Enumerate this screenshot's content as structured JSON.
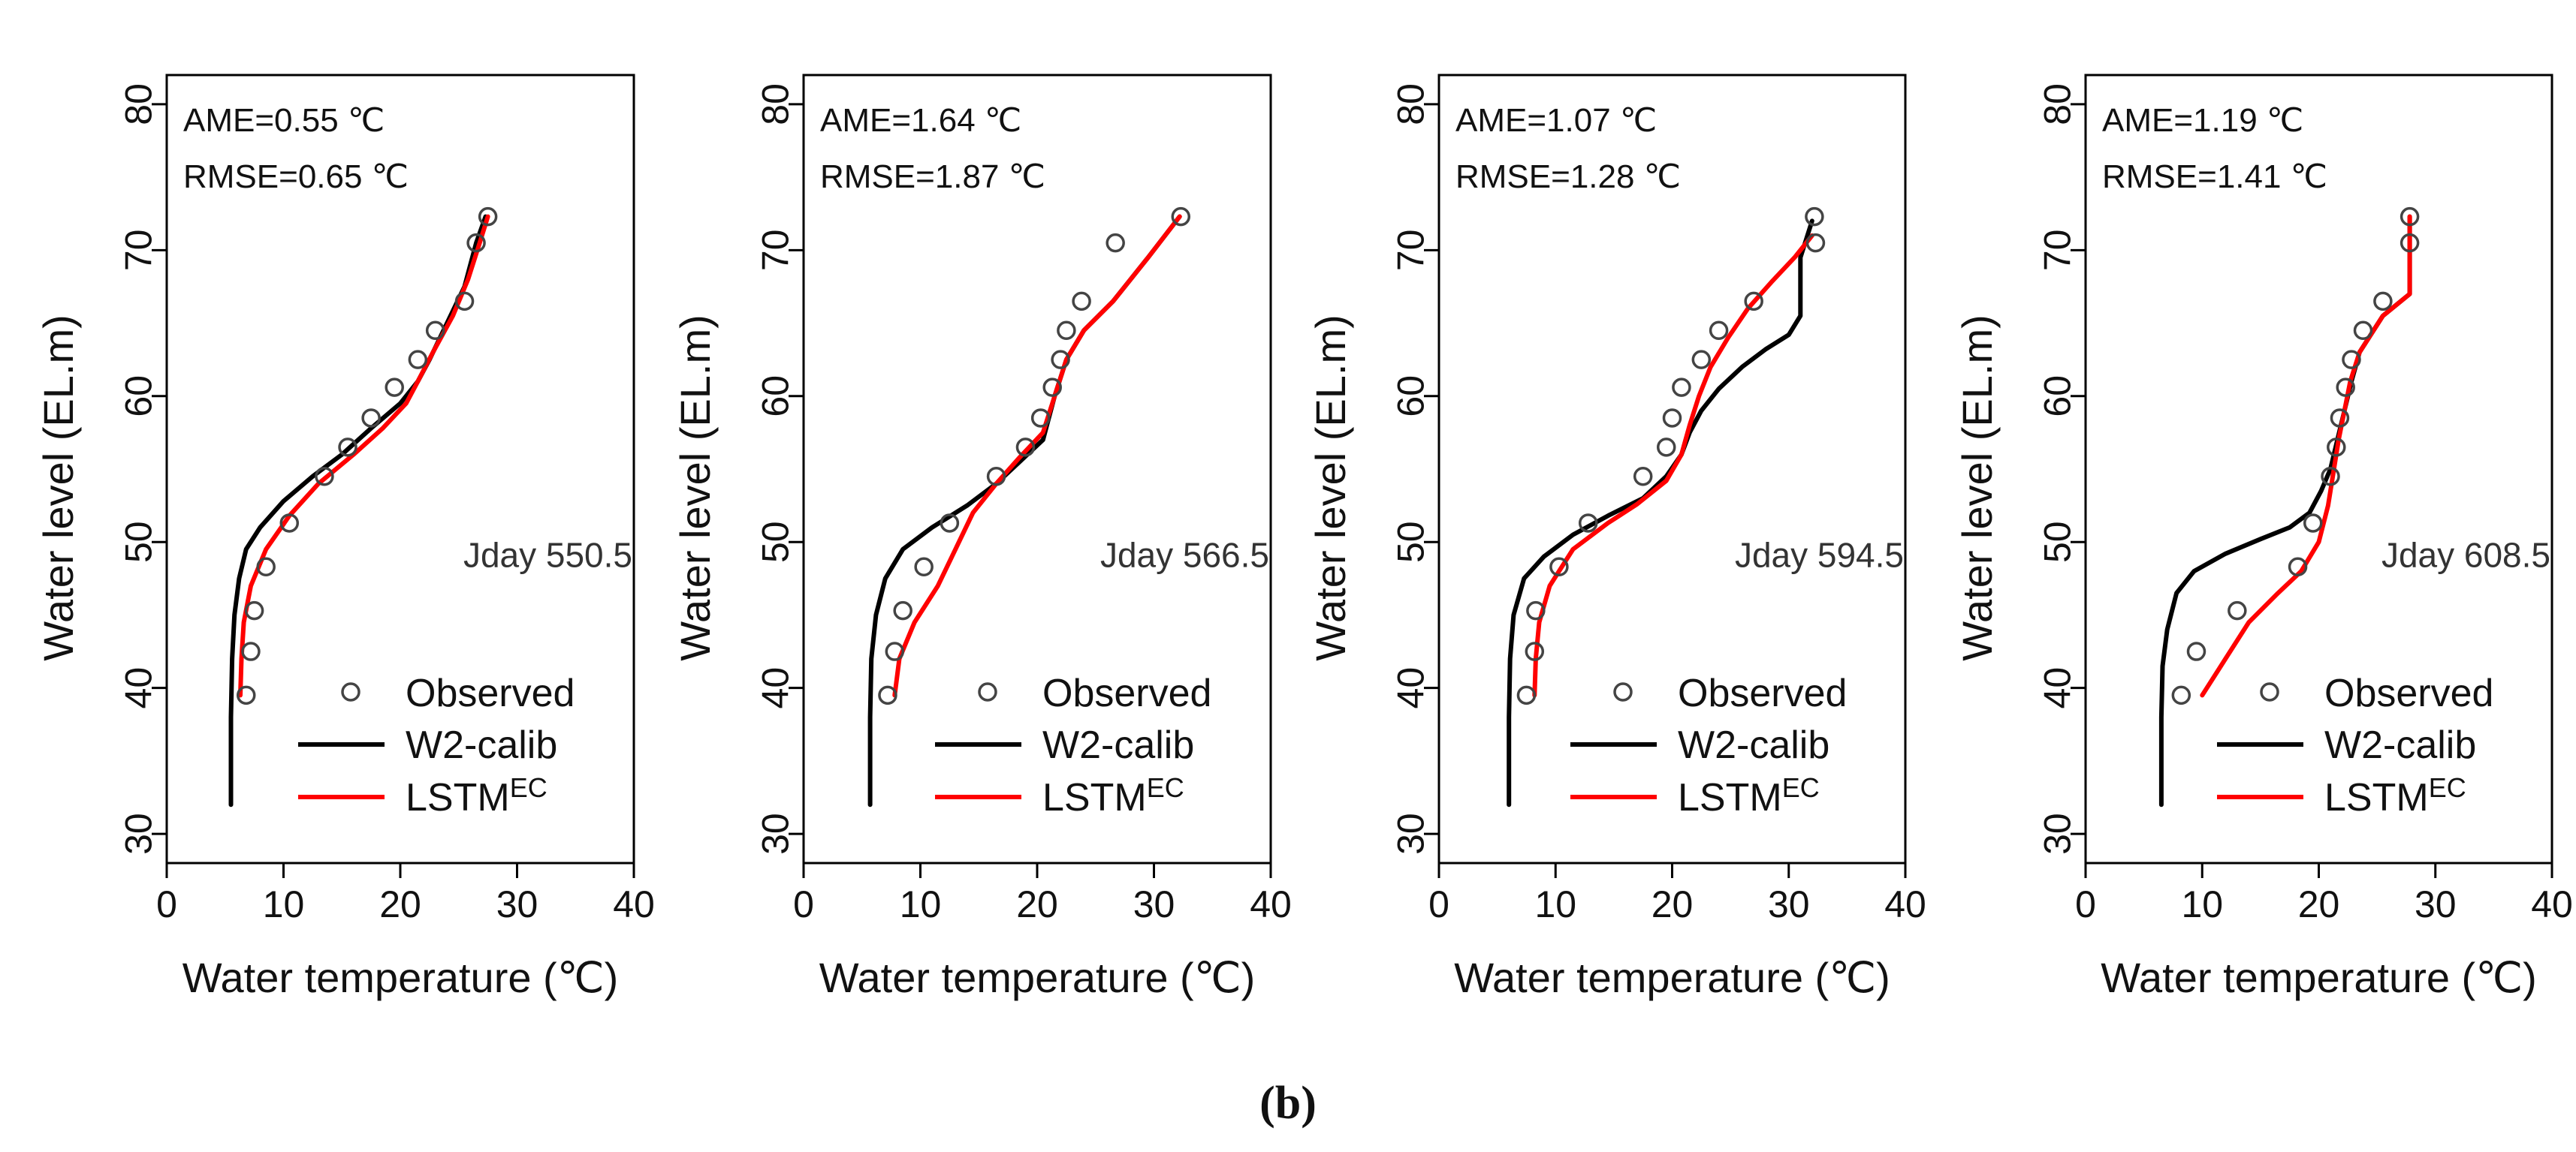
{
  "caption": "(b)",
  "colors": {
    "w2_calib": "#000000",
    "lstm": "#ff0000",
    "observed": "#444444"
  },
  "chart_data": [
    {
      "type": "line",
      "xlabel": "Water temperature (℃)",
      "ylabel": "Water level (EL.m)",
      "xlim": [
        0,
        40
      ],
      "ylim": [
        28,
        82
      ],
      "xticks": [
        0,
        10,
        20,
        30,
        40
      ],
      "yticks": [
        30,
        40,
        50,
        60,
        70,
        80
      ],
      "stats": [
        "AME=0.55 ℃",
        "RMSE=0.65 ℃"
      ],
      "annotation": "Jday 550.5",
      "legend": {
        "placement": "bottom-right",
        "observed": "Observed",
        "w2": "W2-calib",
        "lstm_base": "LSTM",
        "lstm_sup": "EC"
      },
      "observed": [
        [
          6.8,
          39.5
        ],
        [
          7.2,
          42.5
        ],
        [
          7.5,
          45.3
        ],
        [
          8.5,
          48.3
        ],
        [
          10.5,
          51.3
        ],
        [
          13.5,
          54.5
        ],
        [
          15.5,
          56.5
        ],
        [
          17.5,
          58.5
        ],
        [
          19.5,
          60.6
        ],
        [
          21.5,
          62.5
        ],
        [
          23,
          64.5
        ],
        [
          25.5,
          66.5
        ],
        [
          26.5,
          70.5
        ],
        [
          27.5,
          72.3
        ]
      ],
      "series": [
        {
          "name": "W2-calib",
          "points": [
            [
              5.5,
              32
            ],
            [
              5.5,
              38
            ],
            [
              5.6,
              42
            ],
            [
              5.8,
              45
            ],
            [
              6.2,
              47.5
            ],
            [
              6.8,
              49.5
            ],
            [
              8,
              51
            ],
            [
              10,
              52.8
            ],
            [
              12.5,
              54.5
            ],
            [
              15,
              56
            ],
            [
              17.5,
              57.8
            ],
            [
              20,
              59.5
            ],
            [
              21.5,
              61
            ],
            [
              22.5,
              62.5
            ],
            [
              24,
              65
            ],
            [
              25.5,
              67.5
            ],
            [
              26.5,
              70.5
            ],
            [
              27.3,
              72.3
            ]
          ]
        },
        {
          "name": "LSTM",
          "points": [
            [
              6.3,
              39.5
            ],
            [
              6.4,
              42
            ],
            [
              6.6,
              44.5
            ],
            [
              7.2,
              47
            ],
            [
              8.5,
              49.5
            ],
            [
              10.5,
              51.8
            ],
            [
              13,
              54
            ],
            [
              16,
              56
            ],
            [
              18.5,
              57.8
            ],
            [
              20.5,
              59.5
            ],
            [
              21.5,
              61
            ],
            [
              22.8,
              63
            ],
            [
              24.5,
              65.5
            ],
            [
              25.8,
              68
            ],
            [
              26.8,
              70.5
            ],
            [
              27.5,
              72.3
            ]
          ]
        }
      ]
    },
    {
      "type": "line",
      "xlabel": "Water temperature (℃)",
      "ylabel": "Water level (EL.m)",
      "xlim": [
        0,
        40
      ],
      "ylim": [
        28,
        82
      ],
      "xticks": [
        0,
        10,
        20,
        30,
        40
      ],
      "yticks": [
        30,
        40,
        50,
        60,
        70,
        80
      ],
      "stats": [
        "AME=1.64 ℃",
        "RMSE=1.87 ℃"
      ],
      "annotation": "Jday 566.5",
      "legend": {
        "placement": "bottom-right",
        "observed": "Observed",
        "w2": "W2-calib",
        "lstm_base": "LSTM",
        "lstm_sup": "EC"
      },
      "observed": [
        [
          7.2,
          39.5
        ],
        [
          7.8,
          42.5
        ],
        [
          8.5,
          45.3
        ],
        [
          10.3,
          48.3
        ],
        [
          12.5,
          51.3
        ],
        [
          16.5,
          54.5
        ],
        [
          19,
          56.5
        ],
        [
          20.3,
          58.5
        ],
        [
          21.3,
          60.6
        ],
        [
          22,
          62.5
        ],
        [
          22.5,
          64.5
        ],
        [
          23.8,
          66.5
        ],
        [
          26.7,
          70.5
        ],
        [
          32.3,
          72.3
        ]
      ],
      "series": [
        {
          "name": "W2-calib",
          "points": [
            [
              5.7,
              32
            ],
            [
              5.7,
              38
            ],
            [
              5.8,
              42
            ],
            [
              6.2,
              45
            ],
            [
              7,
              47.5
            ],
            [
              8.5,
              49.5
            ],
            [
              11,
              51
            ],
            [
              14,
              52.5
            ],
            [
              16.5,
              54
            ],
            [
              18.5,
              55.5
            ],
            [
              20.5,
              57
            ],
            [
              21.5,
              60
            ],
            [
              22.5,
              62.5
            ],
            [
              24,
              64.5
            ],
            [
              26.5,
              66.5
            ],
            [
              29.5,
              69.5
            ],
            [
              32.2,
              72.3
            ]
          ]
        },
        {
          "name": "LSTM",
          "points": [
            [
              7.8,
              39.5
            ],
            [
              8.2,
              42
            ],
            [
              9.5,
              44.5
            ],
            [
              11.5,
              47
            ],
            [
              13,
              49.5
            ],
            [
              14.5,
              52
            ],
            [
              16.5,
              54
            ],
            [
              18.5,
              55.8
            ],
            [
              20.5,
              57.5
            ],
            [
              21.5,
              60
            ],
            [
              22.5,
              62.5
            ],
            [
              24,
              64.5
            ],
            [
              26.5,
              66.5
            ],
            [
              29.5,
              69.5
            ],
            [
              32.2,
              72.3
            ]
          ]
        }
      ]
    },
    {
      "type": "line",
      "xlabel": "Water temperature (℃)",
      "ylabel": "Water level (EL.m)",
      "xlim": [
        0,
        40
      ],
      "ylim": [
        28,
        82
      ],
      "xticks": [
        0,
        10,
        20,
        30,
        40
      ],
      "yticks": [
        30,
        40,
        50,
        60,
        70,
        80
      ],
      "stats": [
        "AME=1.07 ℃",
        "RMSE=1.28 ℃"
      ],
      "annotation": "Jday 594.5",
      "legend": {
        "placement": "bottom-right",
        "observed": "Observed",
        "w2": "W2-calib",
        "lstm_base": "LSTM",
        "lstm_sup": "EC"
      },
      "observed": [
        [
          7.5,
          39.5
        ],
        [
          8.2,
          42.5
        ],
        [
          8.3,
          45.3
        ],
        [
          10.3,
          48.3
        ],
        [
          12.8,
          51.3
        ],
        [
          17.5,
          54.5
        ],
        [
          19.5,
          56.5
        ],
        [
          20,
          58.5
        ],
        [
          20.8,
          60.6
        ],
        [
          22.5,
          62.5
        ],
        [
          24,
          64.5
        ],
        [
          27,
          66.5
        ],
        [
          32.3,
          70.5
        ],
        [
          32.2,
          72.3
        ]
      ],
      "series": [
        {
          "name": "W2-calib",
          "points": [
            [
              6,
              32
            ],
            [
              6,
              38
            ],
            [
              6.1,
              42
            ],
            [
              6.4,
              45
            ],
            [
              7.3,
              47.5
            ],
            [
              9,
              49
            ],
            [
              11.5,
              50.5
            ],
            [
              14.5,
              51.8
            ],
            [
              17.5,
              53
            ],
            [
              19.5,
              54.5
            ],
            [
              20.8,
              56
            ],
            [
              21.5,
              57.5
            ],
            [
              22.5,
              59
            ],
            [
              24,
              60.5
            ],
            [
              26,
              62
            ],
            [
              28,
              63.2
            ],
            [
              30,
              64.2
            ],
            [
              31,
              65.5
            ],
            [
              31,
              69.5
            ],
            [
              32,
              72
            ]
          ]
        },
        {
          "name": "LSTM",
          "points": [
            [
              8.2,
              39.5
            ],
            [
              8.3,
              42
            ],
            [
              8.6,
              44.5
            ],
            [
              9.5,
              47
            ],
            [
              11.5,
              49.5
            ],
            [
              14.5,
              51.3
            ],
            [
              17,
              52.6
            ],
            [
              19.5,
              54.2
            ],
            [
              20.8,
              56
            ],
            [
              21.5,
              58
            ],
            [
              22.3,
              60
            ],
            [
              23.3,
              62
            ],
            [
              24.8,
              64
            ],
            [
              26.5,
              66
            ],
            [
              28.5,
              67.8
            ],
            [
              30.5,
              69.5
            ],
            [
              32,
              71
            ]
          ]
        }
      ]
    },
    {
      "type": "line",
      "xlabel": "Water temperature (℃)",
      "ylabel": "Water level (EL.m)",
      "xlim": [
        0,
        40
      ],
      "ylim": [
        28,
        82
      ],
      "xticks": [
        0,
        10,
        20,
        30,
        40
      ],
      "yticks": [
        30,
        40,
        50,
        60,
        70,
        80
      ],
      "stats": [
        "AME=1.19 ℃",
        "RMSE=1.41 ℃"
      ],
      "annotation": "Jday 608.5",
      "legend": {
        "placement": "bottom-right",
        "observed": "Observed",
        "w2": "W2-calib",
        "lstm_base": "LSTM",
        "lstm_sup": "EC"
      },
      "observed": [
        [
          8.2,
          39.5
        ],
        [
          9.5,
          42.5
        ],
        [
          13,
          45.3
        ],
        [
          18.2,
          48.3
        ],
        [
          19.5,
          51.3
        ],
        [
          21,
          54.5
        ],
        [
          21.5,
          56.5
        ],
        [
          21.8,
          58.5
        ],
        [
          22.3,
          60.6
        ],
        [
          22.8,
          62.5
        ],
        [
          23.8,
          64.5
        ],
        [
          25.5,
          66.5
        ],
        [
          27.8,
          70.5
        ],
        [
          27.8,
          72.3
        ]
      ],
      "series": [
        {
          "name": "W2-calib",
          "points": [
            [
              6.5,
              32
            ],
            [
              6.5,
              38
            ],
            [
              6.6,
              41.5
            ],
            [
              7,
              44
            ],
            [
              7.8,
              46.5
            ],
            [
              9.3,
              48
            ],
            [
              12,
              49.2
            ],
            [
              15,
              50.2
            ],
            [
              17.5,
              51
            ],
            [
              19.2,
              52
            ],
            [
              20.2,
              53.5
            ],
            [
              21,
              55
            ],
            [
              21.6,
              57
            ],
            [
              22.2,
              59
            ],
            [
              22.8,
              61
            ],
            [
              23.5,
              63
            ],
            [
              25.5,
              65.5
            ],
            [
              27.8,
              67
            ],
            [
              27.8,
              72.3
            ]
          ]
        },
        {
          "name": "LSTM",
          "points": [
            [
              10,
              39.5
            ],
            [
              12,
              42
            ],
            [
              14,
              44.5
            ],
            [
              16.5,
              46.5
            ],
            [
              18.5,
              48
            ],
            [
              20,
              50
            ],
            [
              20.8,
              52.5
            ],
            [
              21.3,
              55
            ],
            [
              21.7,
              57
            ],
            [
              22.2,
              59
            ],
            [
              22.7,
              61
            ],
            [
              23.5,
              63
            ],
            [
              25.5,
              65.5
            ],
            [
              27.8,
              67
            ],
            [
              27.8,
              72.3
            ]
          ]
        }
      ]
    }
  ]
}
